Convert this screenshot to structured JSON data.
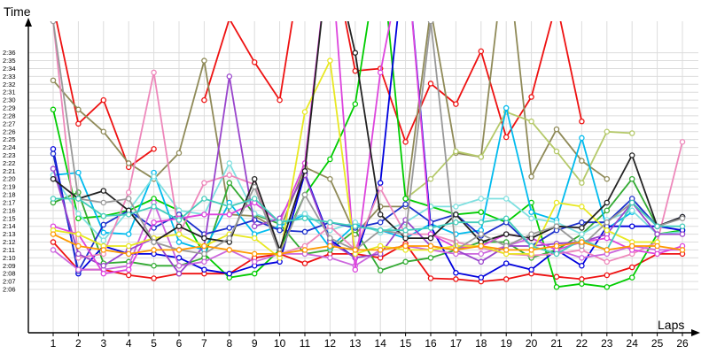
{
  "chart_data": {
    "type": "line",
    "xlabel": "Laps",
    "ylabel": "Time",
    "x": [
      1,
      2,
      3,
      4,
      5,
      6,
      7,
      8,
      9,
      10,
      11,
      12,
      13,
      14,
      15,
      16,
      17,
      18,
      19,
      20,
      21,
      22,
      23,
      24,
      25,
      26
    ],
    "y_tick_labels": [
      "2:06",
      "2:07",
      "2:08",
      "2:09",
      "2:10",
      "2:11",
      "2:12",
      "2:13",
      "2:14",
      "2:15",
      "2:16",
      "2:17",
      "2:18",
      "2:19",
      "2:20",
      "2:21",
      "2:22",
      "2:23",
      "2:24",
      "2:25",
      "2:26",
      "2:27",
      "2:28",
      "2:29",
      "2:30",
      "2:31",
      "2:32",
      "2:33",
      "2:34",
      "2:35",
      "2:36"
    ],
    "y_tick_seconds": [
      126,
      127,
      128,
      129,
      130,
      131,
      132,
      133,
      134,
      135,
      136,
      137,
      138,
      139,
      140,
      141,
      142,
      143,
      144,
      145,
      146,
      147,
      148,
      149,
      150,
      151,
      152,
      153,
      154,
      155,
      156
    ],
    "ylim_seconds": [
      120.5,
      160
    ],
    "grid": true,
    "legend": "none",
    "series": [
      {
        "color": "#ee1111",
        "values": [
          162,
          147,
          150,
          141.5,
          143.8,
          null,
          150,
          160.3,
          154.8,
          150,
          170,
          170,
          153.7,
          154,
          144.7,
          152.1,
          149.5,
          156.2,
          145.3,
          150.4,
          162.4,
          147.3,
          null,
          null,
          null,
          null
        ]
      },
      {
        "color": "#ee1111",
        "values": [
          132,
          128.5,
          128.5,
          127.8,
          127.4,
          128,
          128,
          128,
          130,
          130.5,
          129.3,
          130.5,
          130.5,
          130,
          131.8,
          127.4,
          127.3,
          127,
          127.3,
          128,
          127.6,
          127.3,
          127.8,
          128.8,
          130.5,
          130.5
        ]
      },
      {
        "color": "#8f8a58",
        "values": [
          152.5,
          148.8,
          146,
          142,
          140,
          143.3,
          155,
          135.5,
          135.3,
          133.5,
          141.5,
          140,
          133,
          136.5,
          136.5,
          161.5,
          143.3,
          142.8,
          170,
          140.3,
          146.3,
          142.3,
          140,
          null,
          null,
          null
        ]
      },
      {
        "color": "#b5c96a",
        "values": [
          null,
          null,
          null,
          null,
          null,
          null,
          null,
          null,
          null,
          null,
          null,
          null,
          null,
          null,
          137.5,
          140,
          143.5,
          142.8,
          148.5,
          147.3,
          143.5,
          139.5,
          146,
          145.8,
          null,
          null
        ]
      },
      {
        "color": "#00cc00",
        "values": [
          148.8,
          135,
          135.3,
          136,
          137.5,
          136,
          130.5,
          127.5,
          128,
          131,
          138,
          142.5,
          149.5,
          170,
          137.5,
          136.5,
          135.5,
          135.8,
          134.5,
          137,
          126.3,
          126.7,
          126.3,
          127.5,
          133,
          133.5
        ]
      },
      {
        "color": "#33aa33",
        "values": [
          137,
          138.3,
          129.3,
          129.5,
          129,
          129,
          130,
          139.5,
          135.5,
          134.3,
          130.5,
          131,
          133.5,
          128.4,
          129.5,
          130,
          131,
          132,
          132,
          130,
          131,
          133,
          136,
          140,
          134,
          null
        ]
      },
      {
        "color": "#00bbee",
        "values": [
          140.5,
          140.8,
          133.2,
          133,
          140.8,
          132,
          131,
          137,
          133,
          134,
          135.5,
          131.3,
          134.2,
          133.5,
          132.5,
          134.3,
          133,
          133.5,
          149,
          135.8,
          134.8,
          145.2,
          133.7,
          135.8,
          null,
          null
        ]
      },
      {
        "color": "#7fe0e0",
        "values": [
          140.5,
          135.6,
          132.2,
          136,
          140.3,
          136,
          135.5,
          142,
          135.6,
          134.5,
          135.6,
          133.5,
          134.5,
          133.2,
          134.5,
          136.5,
          136.5,
          137.5,
          137.5,
          135,
          134.5,
          133,
          134.8,
          136,
          133,
          133.3
        ]
      },
      {
        "color": "#0000dd",
        "values": [
          143.8,
          128,
          131.5,
          130.5,
          130.5,
          130,
          128.5,
          128,
          129,
          129.5,
          140.7,
          132.3,
          130,
          139.5,
          170,
          134,
          128.1,
          127.5,
          129.3,
          128.5,
          131,
          129,
          134,
          134,
          134,
          133.5
        ]
      },
      {
        "color": "#1b2fcc",
        "values": [
          143.2,
          128.3,
          134.2,
          136,
          133.8,
          135.5,
          133,
          133.8,
          134.8,
          133.5,
          133.3,
          134.5,
          133.8,
          134.5,
          136.8,
          134.5,
          135.5,
          132.8,
          134.5,
          131.5,
          133.5,
          134.5,
          134.5,
          137.5,
          134,
          135.2
        ]
      },
      {
        "color": "#ee88bb",
        "values": [
          160,
          130,
          130.5,
          138.3,
          153.5,
          133,
          139.5,
          140.5,
          139.3,
          130.5,
          131.5,
          134,
          131,
          138.8,
          133,
          133,
          132,
          131.3,
          130.5,
          130.3,
          130.5,
          131,
          129.5,
          130.5,
          132,
          144.7
        ]
      },
      {
        "color": "#cc66dd",
        "values": [
          131,
          128.5,
          128.5,
          129,
          137,
          129,
          129.5,
          131,
          129.5,
          130.5,
          130.5,
          130,
          129,
          131,
          131.5,
          131,
          130.5,
          130.5,
          131.5,
          132.5,
          131,
          130,
          130.5,
          131.5,
          131,
          131
        ]
      },
      {
        "color": "#9944cc",
        "values": [
          141.3,
          130.5,
          129,
          131,
          132.5,
          128,
          131.5,
          153,
          134,
          135,
          140.5,
          132,
          130,
          130.5,
          134.8,
          131.5,
          131,
          129.5,
          131.5,
          131.5,
          131.8,
          132,
          133,
          137,
          133,
          133
        ]
      },
      {
        "color": "#dd44dd",
        "values": [
          134,
          133,
          128,
          128.5,
          134.5,
          135,
          135.5,
          135.5,
          137,
          134.5,
          142,
          170,
          128.5,
          153.5,
          170,
          133,
          131.3,
          131.5,
          133,
          132.5,
          131,
          132,
          132.5,
          131,
          130.5,
          131.5
        ]
      },
      {
        "color": "#e8e822",
        "values": [
          133.5,
          133,
          131.5,
          131.5,
          132.5,
          133,
          131.5,
          133,
          132.5,
          130,
          148.5,
          155,
          130.5,
          131.5,
          131,
          131,
          131.5,
          131.5,
          130.5,
          130.5,
          137,
          136.5,
          133.5,
          132,
          132,
          null
        ]
      },
      {
        "color": "#222222",
        "values": [
          140,
          137.5,
          138.5,
          136,
          132,
          134,
          132.5,
          132,
          140,
          131,
          141,
          170,
          156,
          135.5,
          132.5,
          132.5,
          135.5,
          132,
          133,
          132.5,
          134,
          133.8,
          137,
          143,
          134,
          135.2
        ]
      },
      {
        "color": "#999999",
        "values": [
          160,
          137.5,
          137,
          137.5,
          132,
          131,
          130.5,
          132.5,
          139,
          130.5,
          138,
          132.5,
          131,
          133.5,
          133,
          160,
          131,
          133,
          131.5,
          133,
          134,
          131.5,
          134.5,
          137,
          134,
          135
        ]
      },
      {
        "color": "#44ccbb",
        "values": [
          137.5,
          137.5,
          135.3,
          135.5,
          136.5,
          134.8,
          137.5,
          136.5,
          137.5,
          134.5,
          135,
          134.5,
          134,
          133.5,
          133.5,
          133.8,
          134.5,
          134.5,
          135,
          131.5,
          130.5,
          132.3,
          131,
          137,
          134,
          134
        ]
      },
      {
        "color": "#ff9900",
        "values": [
          133,
          131.5,
          131,
          130.5,
          131,
          131,
          131.5,
          131,
          130.5,
          130.5,
          131,
          131.5,
          131,
          131,
          131.5,
          131.5,
          131,
          131.5,
          131,
          131,
          131.5,
          132,
          131,
          131.5,
          131.5,
          131
        ]
      }
    ]
  }
}
